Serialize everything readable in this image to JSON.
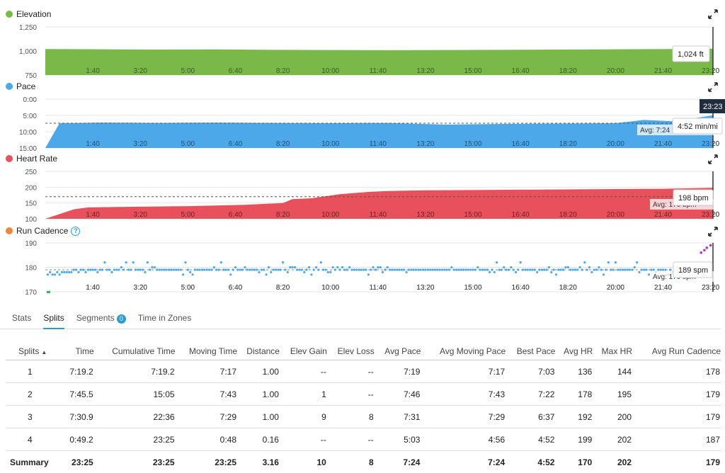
{
  "chart_data": [
    {
      "type": "area",
      "title": "Elevation",
      "color": "#78b94a",
      "ylim": [
        750,
        1250
      ],
      "ylim_unit": "ft",
      "y_ticks": [
        "1,250",
        "1,000",
        "750"
      ],
      "x_ticks": [
        "1:40",
        "3:20",
        "5:00",
        "6:40",
        "8:20",
        "10:00",
        "11:40",
        "13:20",
        "15:00",
        "16:40",
        "18:20",
        "20:00",
        "21:40",
        "23:20"
      ],
      "series": [
        {
          "x": [
            0,
            120,
            240,
            360,
            480,
            600,
            720,
            840,
            960,
            1080,
            1200,
            1320,
            1405
          ],
          "y": [
            1020,
            1018,
            1015,
            1016,
            1012,
            1010,
            1008,
            1010,
            1012,
            1015,
            1018,
            1020,
            1024
          ]
        }
      ],
      "hover": {
        "time": "",
        "value": "1,024 ft"
      }
    },
    {
      "type": "area",
      "title": "Pace",
      "color": "#4ca8e8",
      "ylim": [
        0,
        15
      ],
      "inverted": true,
      "y_ticks": [
        "0:00",
        "5:00",
        "10:00",
        "15:00"
      ],
      "x_ticks": [
        "1:40",
        "3:20",
        "5:00",
        "6:40",
        "8:20",
        "10:00",
        "11:40",
        "13:20",
        "15:00",
        "16:40",
        "18:20",
        "20:00",
        "21:40",
        "23:20"
      ],
      "average": 7.4,
      "average_label": "Avg: 7:24 min/mi",
      "series": [
        {
          "x": [
            0,
            30,
            120,
            240,
            360,
            480,
            600,
            720,
            840,
            960,
            1080,
            1200,
            1260,
            1320,
            1405
          ],
          "y": [
            15,
            7.4,
            7.2,
            7.3,
            7.2,
            7.3,
            7.4,
            7.3,
            7.8,
            7.6,
            7.5,
            7.4,
            6.4,
            6.8,
            5.0
          ]
        }
      ],
      "hover": {
        "time": "23:23",
        "value": "4:52 min/mi"
      }
    },
    {
      "type": "area",
      "title": "Heart Rate",
      "color": "#e8505b",
      "ylim": [
        100,
        250
      ],
      "y_ticks": [
        "250",
        "200",
        "150",
        "100"
      ],
      "x_ticks": [
        "1:40",
        "3:20",
        "5:00",
        "6:40",
        "8:20",
        "10:00",
        "11:40",
        "13:20",
        "15:00",
        "16:40",
        "18:20",
        "20:00",
        "21:40",
        "23:20"
      ],
      "average": 170,
      "average_label": "Avg: 170 bpm",
      "series": [
        {
          "x": [
            0,
            60,
            90,
            180,
            300,
            420,
            500,
            520,
            560,
            620,
            680,
            720,
            800,
            900,
            1000,
            1100,
            1200,
            1300,
            1405
          ],
          "y": [
            100,
            130,
            136,
            138,
            140,
            144,
            150,
            162,
            165,
            178,
            185,
            188,
            190,
            191,
            192,
            193,
            194,
            195,
            198
          ]
        }
      ],
      "hover": {
        "time": "",
        "value": "198 bpm"
      }
    },
    {
      "type": "scatter",
      "title": "Run Cadence",
      "color": "#4ca8e8",
      "ylim": [
        170,
        190
      ],
      "y_ticks": [
        "190",
        "180",
        "170"
      ],
      "x_ticks": [
        "1:40",
        "3:20",
        "5:00",
        "6:40",
        "8:20",
        "10:00",
        "11:40",
        "13:20",
        "15:00",
        "16:40",
        "18:20",
        "20:00",
        "21:40",
        "23:20"
      ],
      "average": 179,
      "average_label": "Avg: 179 spm",
      "hover": {
        "time": "",
        "value": "189 spm"
      }
    }
  ],
  "icons": {
    "expand": "expand-icon",
    "help": "help-icon"
  },
  "tabs": [
    {
      "label": "Stats",
      "active": false
    },
    {
      "label": "Splits",
      "active": true
    },
    {
      "label": "Segments",
      "active": false,
      "badge": "0"
    },
    {
      "label": "Time in Zones",
      "active": false
    }
  ],
  "table": {
    "headers": [
      "Splits",
      "Time",
      "Cumulative Time",
      "Moving Time",
      "Distance",
      "Elev Gain",
      "Elev Loss",
      "Avg Pace",
      "Avg Moving Pace",
      "Best Pace",
      "Avg HR",
      "Max HR",
      "Avg Run Cadence"
    ],
    "rows": [
      [
        "1",
        "7:19.2",
        "7:19.2",
        "7:17",
        "1.00",
        "--",
        "--",
        "7:19",
        "7:17",
        "7:03",
        "136",
        "144",
        "178"
      ],
      [
        "2",
        "7:45.5",
        "15:05",
        "7:43",
        "1.00",
        "1",
        "--",
        "7:46",
        "7:43",
        "7:22",
        "178",
        "195",
        "179"
      ],
      [
        "3",
        "7:30.9",
        "22:36",
        "7:29",
        "1.00",
        "9",
        "8",
        "7:31",
        "7:29",
        "6:37",
        "192",
        "200",
        "179"
      ],
      [
        "4",
        "0:49.2",
        "23:25",
        "0:48",
        "0.16",
        "--",
        "--",
        "5:03",
        "4:56",
        "4:52",
        "199",
        "202",
        "187"
      ]
    ],
    "summary": [
      "Summary",
      "23:25",
      "23:25",
      "23:25",
      "3.16",
      "10",
      "8",
      "7:24",
      "7:24",
      "4:52",
      "170",
      "202",
      "179"
    ]
  }
}
